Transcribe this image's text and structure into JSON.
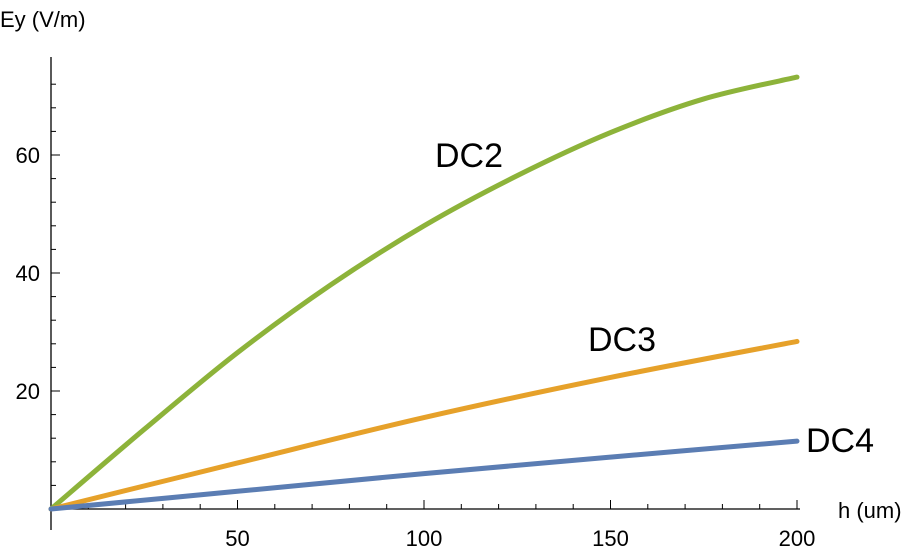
{
  "chart_data": {
    "type": "line",
    "xlabel": "h (um)",
    "ylabel": "Ey (V/m)",
    "xlim": [
      0,
      200
    ],
    "ylim": [
      0,
      75
    ],
    "xticks": [
      50,
      100,
      150,
      200
    ],
    "yticks": [
      20,
      40,
      60
    ],
    "grid": false,
    "legend": "inline labels",
    "series": [
      {
        "name": "DC2",
        "color": "#8db33a",
        "x": [
          0,
          25,
          50,
          75,
          100,
          125,
          150,
          175,
          200
        ],
        "y": [
          0,
          13.5,
          26.5,
          38,
          48,
          56.5,
          63.8,
          69.5,
          73.2
        ]
      },
      {
        "name": "DC3",
        "color": "#e6a12a",
        "x": [
          0,
          50,
          100,
          150,
          200
        ],
        "y": [
          0,
          7.8,
          15.5,
          22.3,
          28.4
        ]
      },
      {
        "name": "DC4",
        "color": "#5b7db3",
        "x": [
          0,
          50,
          100,
          150,
          200
        ],
        "y": [
          0,
          3,
          6,
          8.8,
          11.5
        ]
      }
    ]
  }
}
